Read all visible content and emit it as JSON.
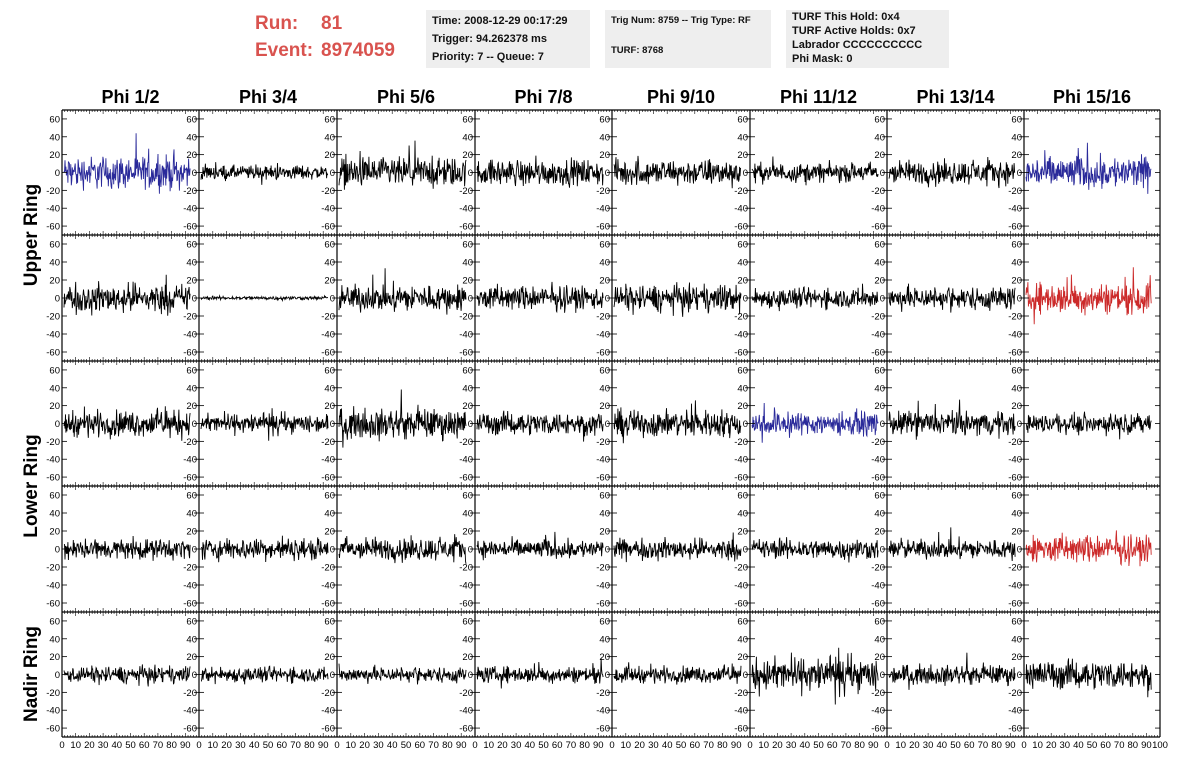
{
  "header": {
    "run_label": "Run:",
    "run_value": "81",
    "event_label": "Event:",
    "event_value": "8974059",
    "time": "Time: 2008-12-29 00:17:29",
    "trigger": "Trigger: 94.262378 ms",
    "priority": "Priority: 7 -- Queue: 7",
    "trig": "Trig Num: 8759 -- Trig Type: RF",
    "turf": "TURF: 8768",
    "turf_hold": "TURF This Hold: 0x4",
    "turf_active": "TURF Active Holds: 0x7",
    "labrador": "Labrador CCCCCCCCCC",
    "phi_mask": "Phi Mask: 0"
  },
  "chart_data": {
    "type": "line",
    "columns": [
      "Phi 1/2",
      "Phi 3/4",
      "Phi 5/6",
      "Phi 7/8",
      "Phi 9/10",
      "Phi 11/12",
      "Phi 13/14",
      "Phi 15/16"
    ],
    "rows": [
      "Upper Ring",
      "Upper Ring",
      "Lower Ring",
      "Lower Ring",
      "Nadir Ring"
    ],
    "ring_labels": [
      "Upper Ring",
      "Lower Ring",
      "Nadir Ring"
    ],
    "xlim": [
      0,
      100
    ],
    "x_ticks": [
      "0",
      "10",
      "20",
      "30",
      "40",
      "50",
      "60",
      "70",
      "80",
      "90",
      "100"
    ],
    "ylim": [
      -70,
      70
    ],
    "y_ticks": [
      "60",
      "40",
      "20",
      "0",
      "-20",
      "-40",
      "-60"
    ],
    "colors": {
      "black": "#000000",
      "blue": "#2a2a9a",
      "red": "#cc2a2a"
    },
    "highlight_colors": [
      [
        "blue",
        "black",
        "black",
        "black",
        "black",
        "black",
        "black",
        "blue"
      ],
      [
        "black",
        "black",
        "black",
        "black",
        "black",
        "black",
        "black",
        "red"
      ],
      [
        "black",
        "black",
        "black",
        "black",
        "black",
        "blue",
        "black",
        "black"
      ],
      [
        "black",
        "black",
        "black",
        "black",
        "black",
        "black",
        "black",
        "red"
      ],
      [
        "black",
        "black",
        "black",
        "black",
        "black",
        "black",
        "black",
        "black"
      ]
    ],
    "amplitudes": [
      [
        28,
        12,
        25,
        22,
        22,
        16,
        20,
        28
      ],
      [
        24,
        3,
        22,
        20,
        22,
        17,
        19,
        26
      ],
      [
        22,
        16,
        25,
        19,
        23,
        20,
        20,
        16
      ],
      [
        17,
        18,
        19,
        16,
        17,
        17,
        16,
        23
      ],
      [
        14,
        13,
        13,
        14,
        14,
        28,
        16,
        24
      ]
    ],
    "samples_per_trace": 260
  }
}
